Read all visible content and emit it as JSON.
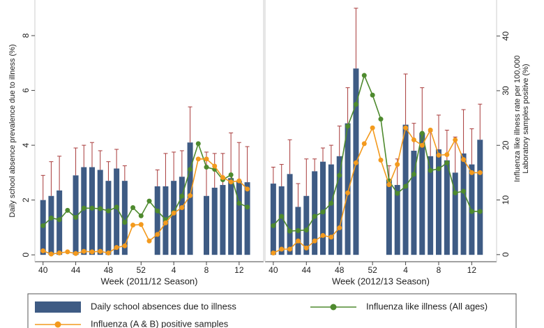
{
  "chart_data": [
    {
      "type": "bar",
      "x_label": "Week (2011/12 Season)",
      "y_label": "Daily school absence prevalence due to illness (%)",
      "categories": [
        40,
        null,
        null,
        null,
        44,
        null,
        null,
        null,
        48,
        null,
        null,
        null,
        52,
        null,
        null,
        null,
        4,
        null,
        null,
        null,
        8,
        null,
        null,
        null,
        12,
        null
      ],
      "ylim": [
        -0.25,
        9.3
      ],
      "yticks": [
        0,
        2,
        4,
        6,
        8
      ],
      "y2lim": [
        -1.3,
        46.6
      ],
      "series": [
        {
          "name": "Daily school absences due to illness",
          "type": "bar",
          "color": "#3e5b84",
          "error_color": "#a83a3a",
          "values": [
            2.0,
            2.15,
            2.35,
            null,
            2.9,
            3.2,
            3.2,
            3.1,
            2.7,
            3.15,
            2.7,
            null,
            null,
            null,
            2.5,
            2.5,
            2.7,
            2.85,
            4.1,
            null,
            2.15,
            2.45,
            2.55,
            2.8,
            2.7,
            2.65
          ],
          "upper": [
            2.9,
            3.4,
            3.6,
            null,
            3.9,
            4.0,
            4.1,
            3.8,
            3.4,
            3.85,
            3.25,
            null,
            null,
            null,
            3.1,
            3.7,
            3.75,
            3.8,
            5.4,
            null,
            3.75,
            3.7,
            3.7,
            4.45,
            4.1,
            3.95
          ]
        },
        {
          "name": "Influenza like illness (All ages)",
          "type": "line",
          "axis": "y2",
          "color": "#4e8a2e",
          "values": [
            5.3,
            6.7,
            6.4,
            8.1,
            6.8,
            8.5,
            8.5,
            8.4,
            8.0,
            8.7,
            5.9,
            8.6,
            7.1,
            9.8,
            8.0,
            6.4,
            7.7,
            10.7,
            15.6,
            20.3,
            16.0,
            15.6,
            13.7,
            14.6,
            9.4,
            8.7
          ]
        },
        {
          "name": "Influenza (A & B) positive samples",
          "type": "line",
          "axis": "y2",
          "color": "#f39a1e",
          "values": [
            0.7,
            0.1,
            0.3,
            0.5,
            0.2,
            0.6,
            0.5,
            0.6,
            0.3,
            1.3,
            1.6,
            5.4,
            5.5,
            2.5,
            3.7,
            5.8,
            7.6,
            8.6,
            10.8,
            17.5,
            17.5,
            16.2,
            14.1,
            13.3,
            13.5,
            12.0
          ]
        }
      ]
    },
    {
      "type": "bar",
      "x_label": "Week (2012/13 Season)",
      "y2_label": "Influenza like illness rate per 100,000",
      "y2_label2": "Laboratory samples positive (%)",
      "categories": [
        40,
        null,
        null,
        null,
        44,
        null,
        null,
        null,
        48,
        null,
        null,
        null,
        52,
        null,
        null,
        null,
        4,
        null,
        null,
        null,
        8,
        null,
        null,
        null,
        12,
        null
      ],
      "ylim": [
        -0.25,
        9.3
      ],
      "y2lim": [
        -1.3,
        46.6
      ],
      "y2ticks": [
        0,
        10,
        20,
        30,
        40
      ],
      "series": [
        {
          "name": "Daily school absences due to illness",
          "type": "bar",
          "color": "#3e5b84",
          "error_color": "#a83a3a",
          "values": [
            2.6,
            2.5,
            2.95,
            1.75,
            2.15,
            3.05,
            3.4,
            3.3,
            3.6,
            4.8,
            6.8,
            null,
            null,
            null,
            2.75,
            2.55,
            4.75,
            3.8,
            4.45,
            3.6,
            3.85,
            3.45,
            3.0,
            3.7,
            3.3,
            4.2
          ],
          "upper": [
            3.2,
            3.3,
            4.2,
            2.6,
            3.5,
            3.5,
            3.9,
            4.0,
            4.7,
            6.1,
            9.0,
            null,
            null,
            null,
            3.25,
            3.5,
            6.6,
            4.8,
            6.1,
            4.5,
            5.1,
            4.55,
            4.3,
            5.3,
            4.6,
            5.5
          ]
        },
        {
          "name": "Influenza like illness (All ages)",
          "type": "line",
          "axis": "y2",
          "color": "#4e8a2e",
          "values": [
            5.3,
            7.0,
            4.3,
            4.4,
            4.5,
            7.0,
            7.8,
            9.4,
            14.5,
            23.5,
            27.5,
            32.8,
            29.2,
            24.8,
            13.5,
            11.2,
            12.5,
            14.7,
            22.2,
            15.4,
            15.7,
            16.8,
            11.3,
            11.6,
            7.9,
            7.9
          ]
        },
        {
          "name": "Influenza (A & B) positive samples",
          "type": "line",
          "axis": "y2",
          "color": "#f39a1e",
          "values": [
            0.3,
            1.0,
            1.0,
            2.5,
            1.2,
            2.5,
            3.5,
            3.2,
            4.9,
            11.3,
            16.8,
            20.3,
            23.2,
            17.3,
            12.8,
            16.5,
            23.2,
            21.0,
            20.0,
            22.8,
            18.2,
            18.3,
            21.0,
            17.4,
            15.0,
            15.0
          ]
        }
      ]
    }
  ]
}
